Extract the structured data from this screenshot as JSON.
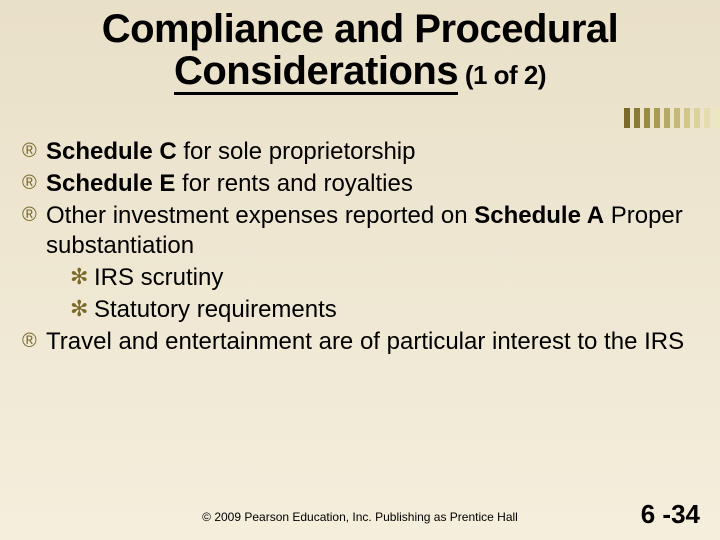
{
  "background": {
    "gradient_from": "#e9e0c8",
    "gradient_to": "#f4eedc"
  },
  "title": {
    "line1": "Compliance and Procedural",
    "line2_underlined": "Considerations",
    "sub": " (1 of 2)"
  },
  "stripes": {
    "colors": [
      "#7a6a2a",
      "#8a7a36",
      "#9a8b44",
      "#a99b54",
      "#b7aa64",
      "#c4b976",
      "#d0c688",
      "#dbd29b",
      "#e4dcae",
      "#ece6c1"
    ]
  },
  "bullets": {
    "l1_marker_color": "#7a6a2a",
    "l2_marker_color": "#7a6a2a",
    "l1_marker": "®",
    "l2_marker": "✻",
    "items": [
      {
        "bold": "Schedule C",
        "rest": " for sole proprietorship"
      },
      {
        "bold": "Schedule E ",
        "rest": " for rents and royalties"
      },
      {
        "pre": "Other investment expenses reported on ",
        "bold": "Schedule A",
        "rest": " Proper substantiation",
        "sub": [
          {
            "text": "IRS scrutiny"
          },
          {
            "text": "Statutory requirements"
          }
        ]
      },
      {
        "text": "Travel and entertainment are of particular interest to the IRS"
      }
    ]
  },
  "footer": {
    "copyright": "© 2009 Pearson Education, Inc. Publishing as Prentice Hall",
    "page": "6 -34"
  }
}
